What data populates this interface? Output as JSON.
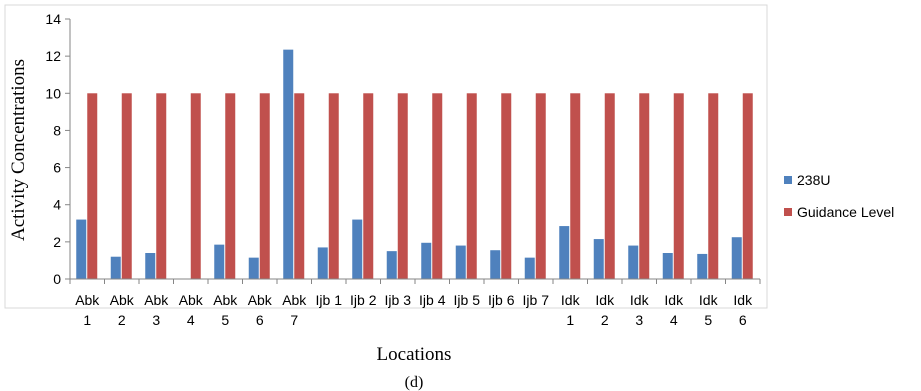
{
  "chart_data": {
    "type": "bar",
    "caption": "(d)",
    "xlabel": "Locations",
    "ylabel": "Activity Concentrations",
    "ylim": [
      0,
      14
    ],
    "yticks": [
      "0",
      "2",
      "4",
      "6",
      "8",
      "10",
      "12",
      "14"
    ],
    "grid": false,
    "legend_position": "right",
    "categories": [
      [
        "Abk",
        "1"
      ],
      [
        "Abk",
        "2"
      ],
      [
        "Abk",
        "3"
      ],
      [
        "Abk",
        "4"
      ],
      [
        "Abk",
        "5"
      ],
      [
        "Abk",
        "6"
      ],
      [
        "Abk",
        "7"
      ],
      [
        "Ijb 1"
      ],
      [
        "Ijb 2"
      ],
      [
        "Ijb 3"
      ],
      [
        "Ijb 4"
      ],
      [
        "Ijb 5"
      ],
      [
        "Ijb 6"
      ],
      [
        "Ijb 7"
      ],
      [
        "Idk",
        "1"
      ],
      [
        "Idk",
        "2"
      ],
      [
        "Idk",
        "3"
      ],
      [
        "Idk",
        "4"
      ],
      [
        "Idk",
        "5"
      ],
      [
        "Idk",
        "6"
      ]
    ],
    "series": [
      {
        "name": "238U",
        "color": "#4f81bd",
        "values": [
          3.2,
          1.2,
          1.4,
          0,
          1.85,
          1.15,
          12.35,
          1.7,
          3.2,
          1.5,
          1.95,
          1.8,
          1.55,
          1.15,
          2.85,
          2.15,
          1.8,
          1.4,
          1.35,
          2.25
        ]
      },
      {
        "name": "Guidance Level",
        "color": "#c0504d",
        "values": [
          10,
          10,
          10,
          10,
          10,
          10,
          10,
          10,
          10,
          10,
          10,
          10,
          10,
          10,
          10,
          10,
          10,
          10,
          10,
          10
        ]
      }
    ]
  }
}
